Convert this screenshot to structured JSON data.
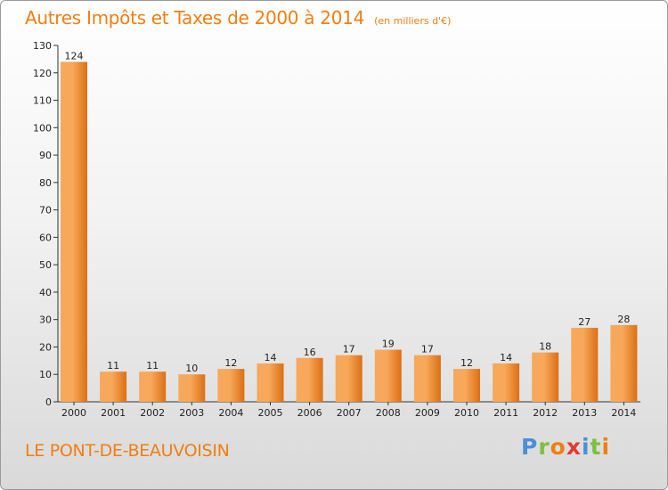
{
  "header": {
    "title": "Autres Impôts et Taxes de 2000 à 2014",
    "subtitle": "(en milliers d'€)"
  },
  "footer": {
    "commune": "LE PONT-DE-BEAUVOISIN",
    "brand": "Proxiti"
  },
  "colors": {
    "accent": "#f07e12",
    "bar_light": "#f7a85a",
    "bar_dark": "#dc6f14",
    "brand_letters": [
      "#4a90d6",
      "#7fbf3f",
      "#f07e12",
      "#e23b2e",
      "#4a90d6",
      "#7fbf3f",
      "#f07e12"
    ]
  },
  "chart_data": {
    "type": "bar",
    "title": "Autres Impôts et Taxes de 2000 à 2014",
    "subtitle": "(en milliers d'€)",
    "categories": [
      "2000",
      "2001",
      "2002",
      "2003",
      "2004",
      "2005",
      "2006",
      "2007",
      "2008",
      "2009",
      "2010",
      "2011",
      "2012",
      "2013",
      "2014"
    ],
    "values": [
      124,
      11,
      11,
      10,
      12,
      14,
      16,
      17,
      19,
      17,
      12,
      14,
      18,
      27,
      28
    ],
    "ylim": [
      0,
      130
    ],
    "yticks": [
      0,
      10,
      20,
      30,
      40,
      50,
      60,
      70,
      80,
      90,
      100,
      110,
      120,
      130
    ],
    "grid": false,
    "data_labels": true
  }
}
